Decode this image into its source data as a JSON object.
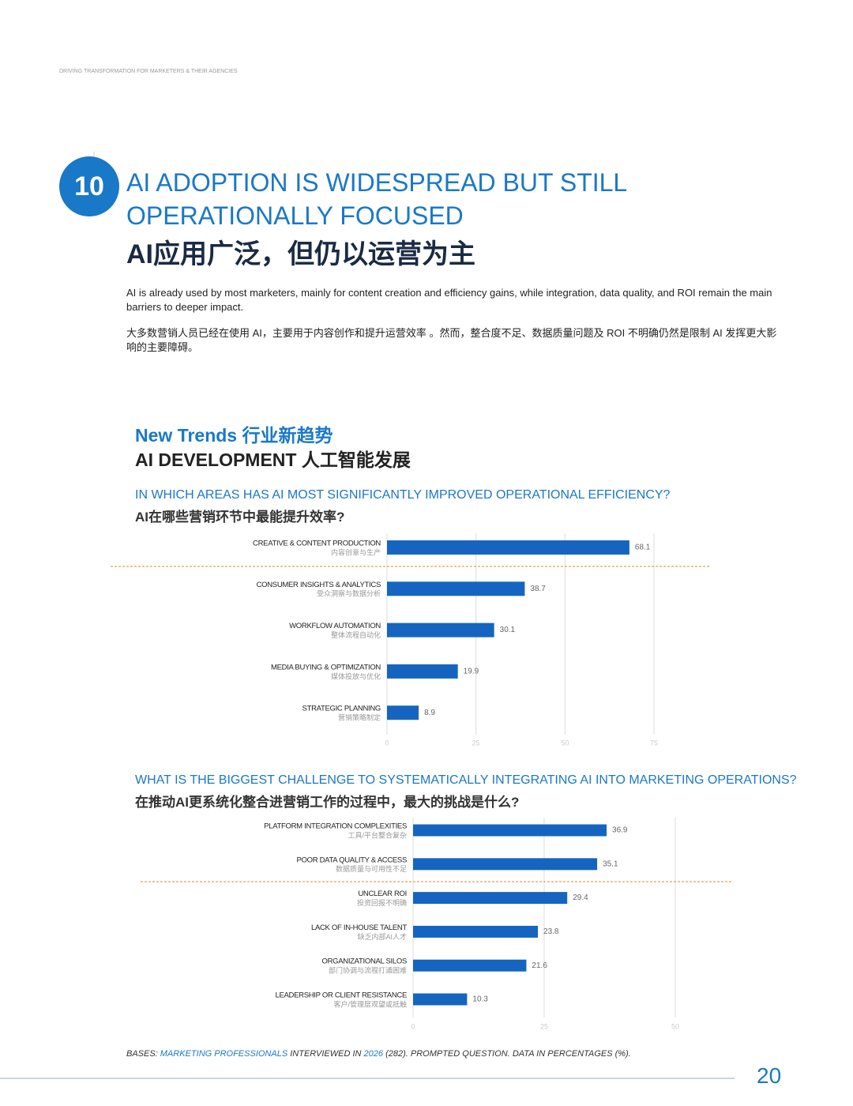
{
  "header": {
    "running_title": "DRIVING TRANSFORMATION FOR MARKETERS & THEIR AGENCIES"
  },
  "section": {
    "number": "10",
    "title_line1": "AI ADOPTION IS WIDESPREAD BUT STILL",
    "title_line2": "OPERATIONALLY FOCUSED",
    "title_zh": "AI应用广泛，但仍以运营为主",
    "intro_en": "AI is already used by most marketers, mainly for content creation and efficiency gains, while integration, data quality, and ROI remain the main barriers to deeper impact.",
    "intro_zh": "大多数营销人员已经在使用 AI，主要用于内容创作和提升运营效率 。然而，整合度不足、数据质量问题及 ROI 不明确仍然是限制 AI 发挥更大影响的主要障碍。"
  },
  "trends": {
    "label_en": "New Trends",
    "label_zh": "行业新趋势",
    "topic_en": "AI DEVELOPMENT",
    "topic_zh": "人工智能发展"
  },
  "chart_data": [
    {
      "type": "bar",
      "orientation": "horizontal",
      "title": "IN WHICH AREAS HAS AI MOST SIGNIFICANTLY IMPROVED OPERATIONAL EFFICIENCY?",
      "subtitle": "AI在哪些营销环节中最能提升效率?",
      "categories": [
        "CREATIVE & CONTENT PRODUCTION",
        "CONSUMER INSIGHTS & ANALYTICS",
        "WORKFLOW AUTOMATION",
        "MEDIA BUYING & OPTIMIZATION",
        "STRATEGIC PLANNING"
      ],
      "categories_zh": [
        "内容创意与生产",
        "受众洞察与数据分析",
        "整体流程自动化",
        "媒体投放与优化",
        "营销策略制定"
      ],
      "values": [
        68.1,
        38.7,
        30.1,
        19.9,
        8.9
      ],
      "color": "#1565c0",
      "xlim": [
        0,
        75
      ],
      "xticks": [
        0,
        25,
        50,
        75
      ],
      "grid": true
    },
    {
      "type": "bar",
      "orientation": "horizontal",
      "title": "WHAT IS THE BIGGEST CHALLENGE TO SYSTEMATICALLY INTEGRATING AI INTO MARKETING OPERATIONS?",
      "subtitle": "在推动AI更系统化整合进营销工作的过程中，最大的挑战是什么?",
      "categories": [
        "PLATFORM INTEGRATION COMPLEXITIES",
        "POOR DATA QUALITY & ACCESS",
        "UNCLEAR ROI",
        "LACK OF IN-HOUSE TALENT",
        "ORGANIZATIONAL SILOS",
        "LEADERSHIP OR CLIENT RESISTANCE"
      ],
      "categories_zh": [
        "工具/平台整合复杂",
        "数据质量与可用性不足",
        "投资回报不明确",
        "缺乏内部AI人才",
        "部门协调与流程打通困难",
        "客户/管理层观望或抵触"
      ],
      "values": [
        36.9,
        35.1,
        29.4,
        23.8,
        21.6,
        10.3
      ],
      "color": "#1565c0",
      "xlim": [
        0,
        50
      ],
      "xticks": [
        0,
        25,
        50
      ],
      "grid": true
    }
  ],
  "footer": {
    "bases": [
      "BASES: ",
      "MARKETING PROFESSIONALS",
      " INTERVIEWED IN ",
      "2026",
      " (282). PROMPTED QUESTION. DATA IN PERCENTAGES (%)."
    ],
    "page_number": "20"
  }
}
